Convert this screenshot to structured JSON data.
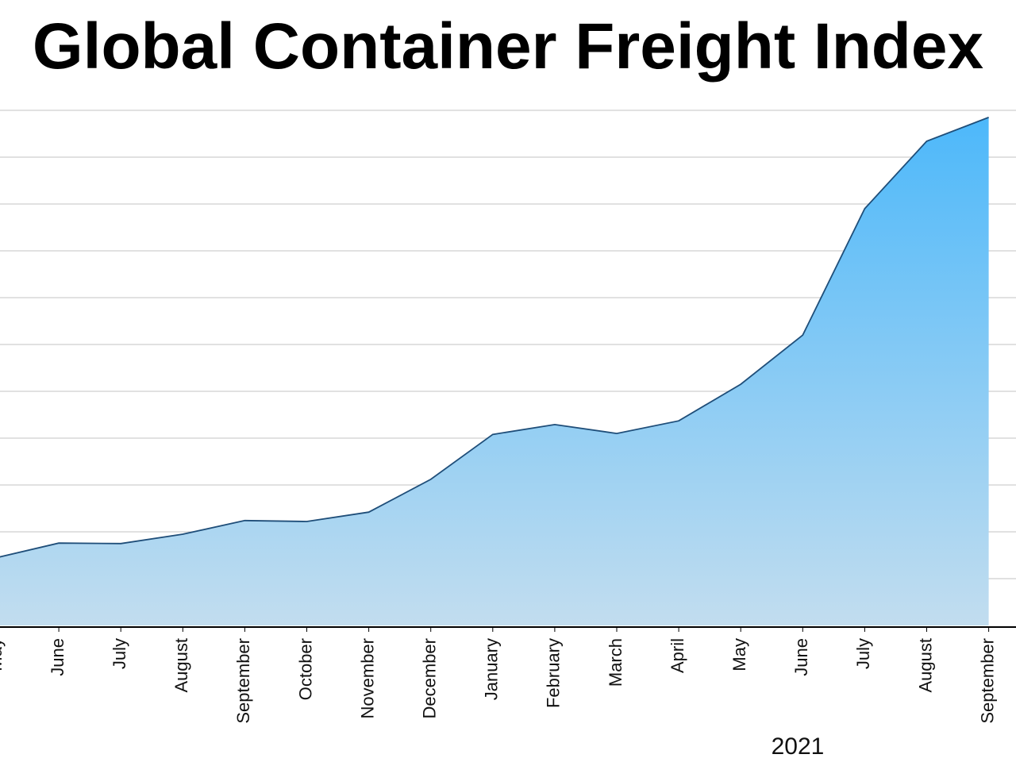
{
  "chart_data": {
    "type": "area",
    "title": "Global Container Freight Index",
    "year_label": "2021",
    "categories": [
      "May",
      "June",
      "July",
      "August",
      "September",
      "October",
      "November",
      "December",
      "January",
      "February",
      "March",
      "April",
      "May",
      "June",
      "July",
      "August",
      "September"
    ],
    "values": [
      1450,
      1760,
      1750,
      1950,
      2240,
      2220,
      2420,
      3120,
      4080,
      4290,
      4100,
      4370,
      5150,
      6200,
      8900,
      10340,
      10850
    ],
    "color": "#1f4e79",
    "ylim": [
      0,
      11500
    ],
    "yticks": [
      0,
      1000,
      2000,
      3000,
      4000,
      5000,
      6000,
      7000,
      8000,
      9000,
      10000,
      11000
    ],
    "grid": true
  }
}
